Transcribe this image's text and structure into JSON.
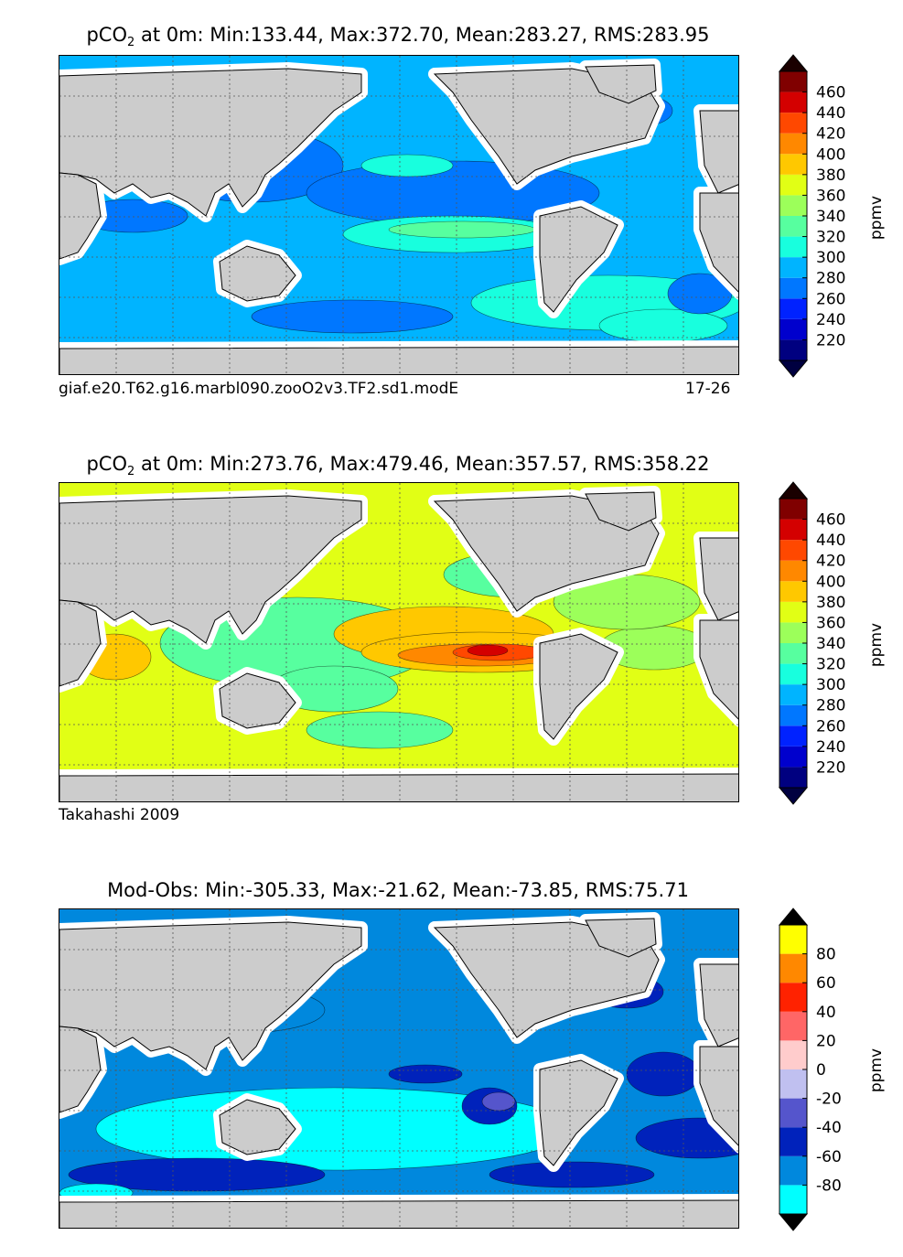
{
  "panels": [
    {
      "title_prefix": "pCO",
      "title_sub": "2",
      "title_rest": " at 0m: Min:133.44, Max:372.70, Mean:283.27, RMS:283.95",
      "caption_left": "giaf.e20.T62.g16.marbl090.zooO2v3.TF2.sd1.modE",
      "caption_right": "17-26",
      "units": "ppmv",
      "colorbar": {
        "levels": [
          200,
          220,
          240,
          260,
          280,
          300,
          320,
          340,
          360,
          380,
          400,
          420,
          440,
          460,
          480
        ],
        "tick_labels": [
          "220",
          "240",
          "260",
          "280",
          "300",
          "320",
          "340",
          "360",
          "380",
          "400",
          "420",
          "440",
          "460"
        ],
        "colors": [
          "#000080",
          "#0000cd",
          "#0022ff",
          "#0077ff",
          "#00b4ff",
          "#18ffde",
          "#57ff9f",
          "#9cff5a",
          "#e1ff15",
          "#ffc800",
          "#ff8800",
          "#ff4800",
          "#d40000",
          "#800000"
        ],
        "extend_low": "#000040",
        "extend_high": "#1a0000"
      },
      "map_background_color": "#00b4ff"
    },
    {
      "title_prefix": "pCO",
      "title_sub": "2",
      "title_rest": " at 0m: Min:273.76, Max:479.46, Mean:357.57, RMS:358.22",
      "caption_left": "Takahashi 2009",
      "caption_right": "",
      "units": "ppmv",
      "colorbar": {
        "levels": [
          200,
          220,
          240,
          260,
          280,
          300,
          320,
          340,
          360,
          380,
          400,
          420,
          440,
          460,
          480
        ],
        "tick_labels": [
          "220",
          "240",
          "260",
          "280",
          "300",
          "320",
          "340",
          "360",
          "380",
          "400",
          "420",
          "440",
          "460"
        ],
        "colors": [
          "#000080",
          "#0000cd",
          "#0022ff",
          "#0077ff",
          "#00b4ff",
          "#18ffde",
          "#57ff9f",
          "#9cff5a",
          "#e1ff15",
          "#ffc800",
          "#ff8800",
          "#ff4800",
          "#d40000",
          "#800000"
        ],
        "extend_low": "#000040",
        "extend_high": "#1a0000"
      },
      "map_background_color": "#e1ff15"
    },
    {
      "title_prefix": "Mod-Obs: Min:-305.33, Max:-21.62, Mean:-73.85, RMS:75.71",
      "title_sub": "",
      "title_rest": "",
      "caption_left": "",
      "caption_right": "",
      "units": "ppmv",
      "colorbar": {
        "levels": [
          -100,
          -80,
          -60,
          -40,
          -20,
          0,
          20,
          40,
          60,
          80,
          100
        ],
        "tick_labels": [
          "-80",
          "-60",
          "-40",
          "-20",
          "0",
          "20",
          "40",
          "60",
          "80"
        ],
        "colors": [
          "#00ffff",
          "#0088dd",
          "#0022bb",
          "#5555cc",
          "#c0c0f0",
          "#ffcccc",
          "#ff6666",
          "#ff2200",
          "#ff8800",
          "#ffff00"
        ],
        "extend_low": "#000000",
        "extend_high": "#000000"
      },
      "map_background_color": "#0088dd"
    }
  ],
  "land_color": "#cccccc",
  "grid": true,
  "chart_data": [
    {
      "type": "heatmap",
      "title": "pCO2 at 0m: Min:133.44, Max:372.70, Mean:283.27, RMS:283.95",
      "zlabel": "ppmv",
      "zlim": [
        200,
        480
      ],
      "stats": {
        "min": 133.44,
        "max": 372.7,
        "mean": 283.27,
        "rms": 283.95
      }
    },
    {
      "type": "heatmap",
      "title": "pCO2 at 0m: Min:273.76, Max:479.46, Mean:357.57, RMS:358.22",
      "zlabel": "ppmv",
      "zlim": [
        200,
        480
      ],
      "stats": {
        "min": 273.76,
        "max": 479.46,
        "mean": 357.57,
        "rms": 358.22
      }
    },
    {
      "type": "heatmap",
      "title": "Mod-Obs: Min:-305.33, Max:-21.62, Mean:-73.85, RMS:75.71",
      "zlabel": "ppmv",
      "zlim": [
        -100,
        100
      ],
      "stats": {
        "min": -305.33,
        "max": -21.62,
        "mean": -73.85,
        "rms": 75.71
      }
    }
  ]
}
